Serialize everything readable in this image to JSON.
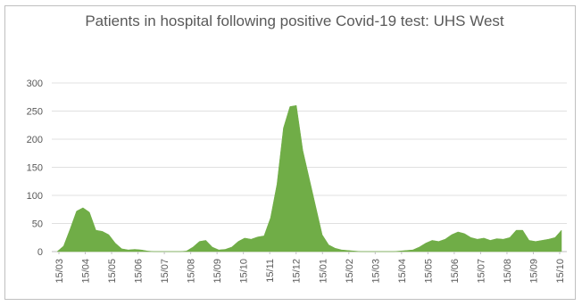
{
  "chart_data": {
    "type": "area",
    "title": "Patients in hospital following positive Covid-19 test: UHS West",
    "xlabel": "",
    "ylabel": "",
    "ylim": [
      0,
      300
    ],
    "yticks": [
      0,
      50,
      100,
      150,
      200,
      250,
      300
    ],
    "xtick_labels": [
      "15/03",
      "15/04",
      "15/05",
      "15/06",
      "15/07",
      "15/08",
      "15/09",
      "15/10",
      "15/11",
      "15/12",
      "15/01",
      "15/02",
      "15/03",
      "15/04",
      "15/05",
      "15/06",
      "15/07",
      "15/08",
      "15/09",
      "15/10"
    ],
    "grid": "horizontal",
    "legend": "none",
    "fill_color": "#70ad47",
    "series": [
      {
        "x": [
          "15/03",
          "22/03",
          "29/03",
          "08/04",
          "15/04",
          "22/04",
          "29/04",
          "08/05",
          "15/05",
          "22/05",
          "29/05",
          "08/06",
          "15/06",
          "22/06",
          "29/06",
          "08/07",
          "15/07",
          "22/07",
          "29/07",
          "08/08",
          "15/08",
          "22/08",
          "29/08",
          "08/09",
          "15/09",
          "22/09",
          "29/09",
          "08/10",
          "15/10",
          "22/10",
          "29/10",
          "08/11",
          "15/11",
          "22/11",
          "29/11",
          "08/12",
          "15/12",
          "22/12",
          "29/12",
          "08/01",
          "15/01",
          "22/01",
          "29/01",
          "08/02",
          "15/02",
          "22/02",
          "29/02",
          "08/03",
          "15/03",
          "22/03",
          "29/03",
          "08/04",
          "15/04",
          "22/04",
          "29/04",
          "08/05",
          "15/05",
          "22/05",
          "29/05",
          "08/06",
          "15/06",
          "22/06",
          "29/06",
          "08/07",
          "15/07",
          "22/07",
          "29/07",
          "08/08",
          "15/08",
          "22/08",
          "29/08",
          "08/09",
          "15/09",
          "22/09",
          "29/09",
          "08/10",
          "15/10",
          "22/10",
          "29/10"
        ],
        "values": [
          0,
          10,
          40,
          72,
          78,
          70,
          38,
          36,
          30,
          15,
          5,
          3,
          4,
          3,
          1,
          0,
          0,
          0,
          0,
          0,
          1,
          8,
          18,
          20,
          8,
          3,
          4,
          8,
          18,
          24,
          22,
          26,
          28,
          60,
          120,
          220,
          258,
          260,
          180,
          130,
          80,
          30,
          12,
          6,
          3,
          2,
          1,
          0,
          0,
          0,
          0,
          0,
          0,
          1,
          2,
          3,
          8,
          15,
          20,
          18,
          22,
          30,
          35,
          32,
          25,
          22,
          24,
          20,
          23,
          22,
          25,
          38,
          38,
          20,
          18,
          20,
          22,
          25,
          38
        ]
      }
    ]
  }
}
